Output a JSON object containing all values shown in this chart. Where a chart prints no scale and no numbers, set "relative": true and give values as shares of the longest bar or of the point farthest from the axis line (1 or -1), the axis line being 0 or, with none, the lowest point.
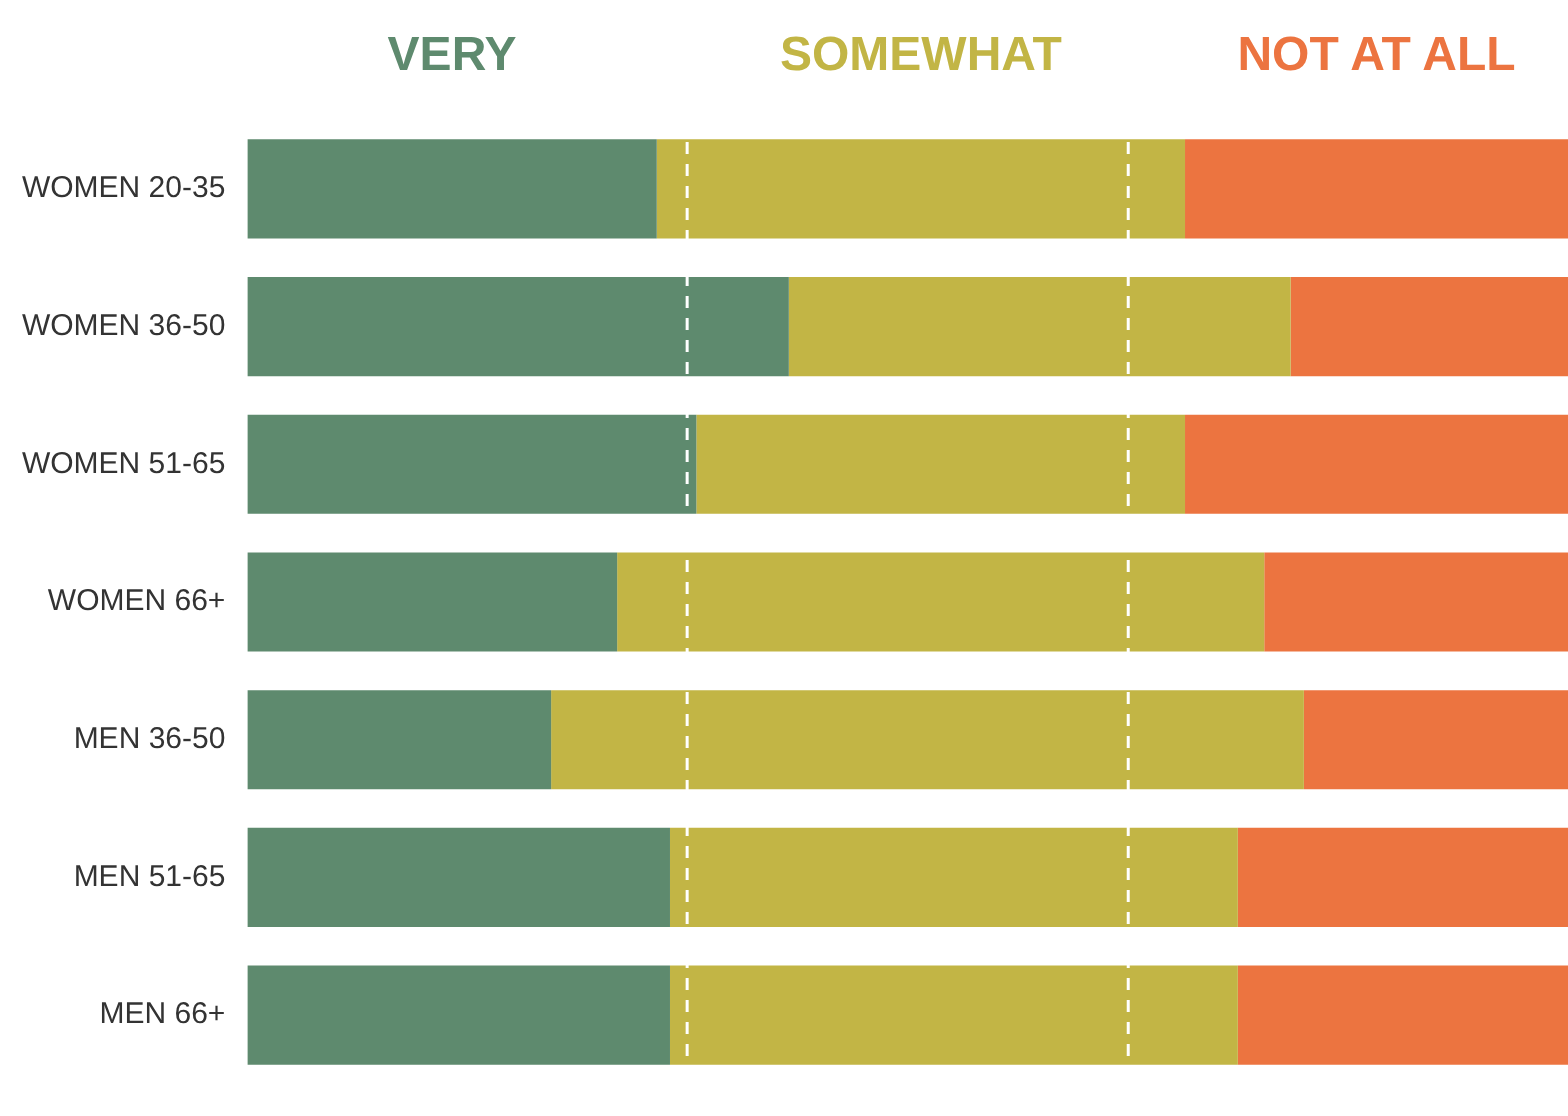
{
  "chart_data": {
    "type": "bar",
    "orientation": "horizontal",
    "stacked": true,
    "relative": true,
    "legend": "top",
    "grid": false,
    "categories": [
      "WOMEN 20-35",
      "WOMEN 36-50",
      "WOMEN 51-65",
      "WOMEN 66+",
      "MEN 36-50",
      "MEN 51-65",
      "MEN 66+"
    ],
    "series": [
      {
        "name": "VERY",
        "color": "#5e8a6e",
        "values": [
          0.31,
          0.41,
          0.34,
          0.28,
          0.23,
          0.32,
          0.32
        ]
      },
      {
        "name": "SOMEWHAT",
        "color": "#c2b545",
        "values": [
          0.4,
          0.38,
          0.37,
          0.49,
          0.57,
          0.43,
          0.43
        ]
      },
      {
        "name": "NOT AT ALL",
        "color": "#ec7440",
        "values": [
          0.29,
          0.21,
          0.29,
          0.23,
          0.2,
          0.25,
          0.25
        ]
      }
    ],
    "ref_lines": [
      {
        "axis": "x",
        "value": 0.333,
        "color": "#ffffff",
        "line_style": "dashed"
      },
      {
        "axis": "x",
        "value": 0.667,
        "color": "#ffffff",
        "line_style": "dashed"
      }
    ]
  }
}
